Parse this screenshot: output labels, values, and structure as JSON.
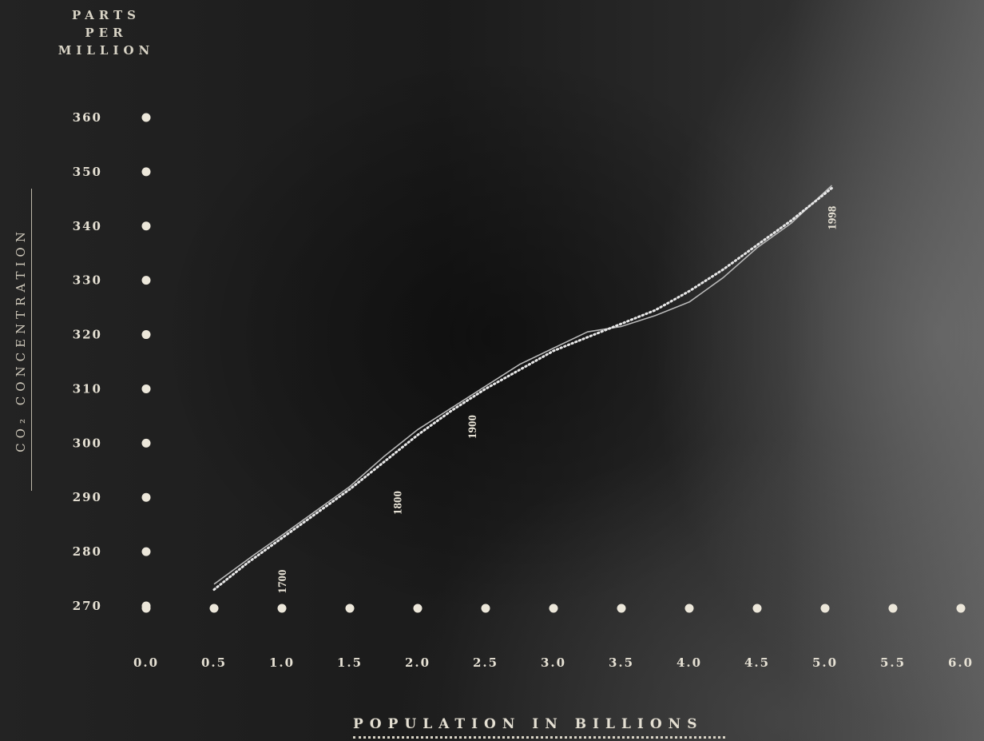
{
  "chart_data": {
    "type": "line",
    "ylabel_top": [
      "PARTS",
      "PER",
      "MILLION"
    ],
    "ylabel_side": "CO₂ CONCENTRATION",
    "xlabel": "POPULATION IN BILLIONS",
    "x_ticks": [
      "0.0",
      "0.5",
      "1.0",
      "1.5",
      "2.0",
      "2.5",
      "3.0",
      "3.5",
      "4.0",
      "4.5",
      "5.0",
      "5.5",
      "6.0"
    ],
    "y_ticks": [
      "360",
      "350",
      "340",
      "330",
      "320",
      "310",
      "300",
      "290",
      "280",
      "270"
    ],
    "xlim": [
      0,
      6
    ],
    "ylim": [
      270,
      360
    ],
    "series": [
      {
        "style": "solid",
        "color": "#b8b8b8",
        "x": [
          0.5,
          0.8,
          1.0,
          1.25,
          1.5,
          1.75,
          2.0,
          2.25,
          2.5,
          2.75,
          3.0,
          3.25,
          3.5,
          3.75,
          4.0,
          4.25,
          4.5,
          4.75,
          5.05
        ],
        "y": [
          274,
          279.5,
          283,
          287.5,
          292,
          297.5,
          302.5,
          306.5,
          310.5,
          314.5,
          317.5,
          320.5,
          321.5,
          323.5,
          326,
          330.5,
          336,
          340.5,
          347.5
        ]
      },
      {
        "style": "dotted",
        "color": "#e8e8e8",
        "x": [
          0.5,
          0.75,
          1.0,
          1.25,
          1.5,
          1.75,
          2.0,
          2.25,
          2.5,
          2.75,
          3.0,
          3.25,
          3.5,
          3.75,
          4.0,
          4.25,
          4.5,
          4.75,
          5.05
        ],
        "y": [
          273,
          278,
          282.5,
          287,
          291.5,
          296.5,
          301.5,
          306,
          310,
          313.5,
          317,
          319.5,
          322,
          324.5,
          328,
          332,
          336.5,
          341,
          347
        ]
      }
    ],
    "annotations": [
      {
        "text": "1700",
        "x": 1.0,
        "y": 274.5
      },
      {
        "text": "1800",
        "x": 1.85,
        "y": 289
      },
      {
        "text": "1900",
        "x": 2.4,
        "y": 303
      },
      {
        "text": "1998",
        "x": 5.05,
        "y": 341.5
      }
    ]
  }
}
